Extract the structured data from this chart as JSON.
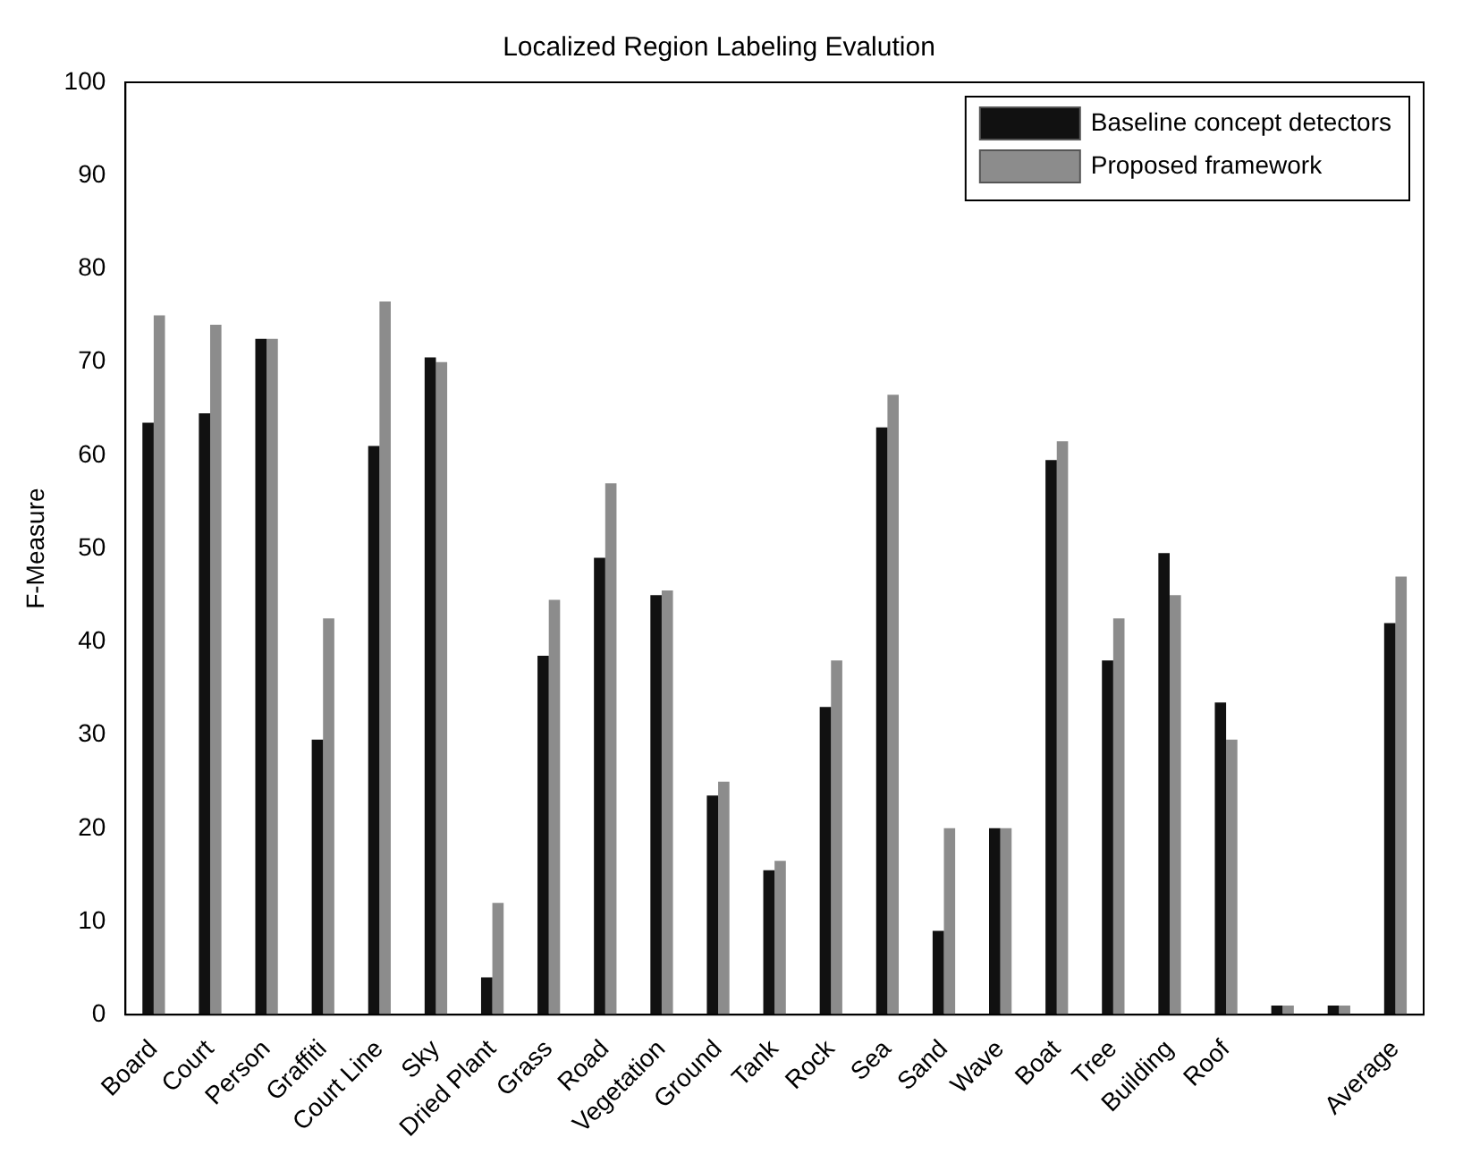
{
  "chart_data": {
    "type": "bar",
    "title": "Localized Region Labeling Evalution",
    "ylabel": "F-Measure",
    "categories": [
      "Board",
      "Court",
      "Person",
      "Graffiti",
      "Court Line",
      "Sky",
      "Dried Plant",
      "Grass",
      "Road",
      "Vegetation",
      "Ground",
      "Tank",
      "Rock",
      "Sea",
      "Sand",
      "Wave",
      "Boat",
      "Tree",
      "Building",
      "Roof",
      null,
      null,
      "Average"
    ],
    "series": [
      {
        "name": "Baseline concept detectors",
        "color": "#111111",
        "values": [
          63.5,
          64.5,
          72.5,
          29.5,
          61,
          70.5,
          4,
          38.5,
          49,
          45,
          23.5,
          15.5,
          33,
          63,
          9,
          20,
          59.5,
          38,
          49.5,
          33.5,
          1,
          1,
          42
        ]
      },
      {
        "name": "Proposed framework",
        "color": "#8c8c8c",
        "values": [
          75,
          74,
          72.5,
          42.5,
          76.5,
          70,
          12,
          44.5,
          57,
          45.5,
          25,
          16.5,
          38,
          66.5,
          20,
          20,
          61.5,
          42.5,
          45,
          29.5,
          1,
          1,
          47
        ]
      }
    ],
    "ylim": [
      0,
      100
    ],
    "yticks": [
      0,
      10,
      20,
      30,
      40,
      50,
      60,
      70,
      80,
      90,
      100
    ],
    "legend": "top right"
  }
}
